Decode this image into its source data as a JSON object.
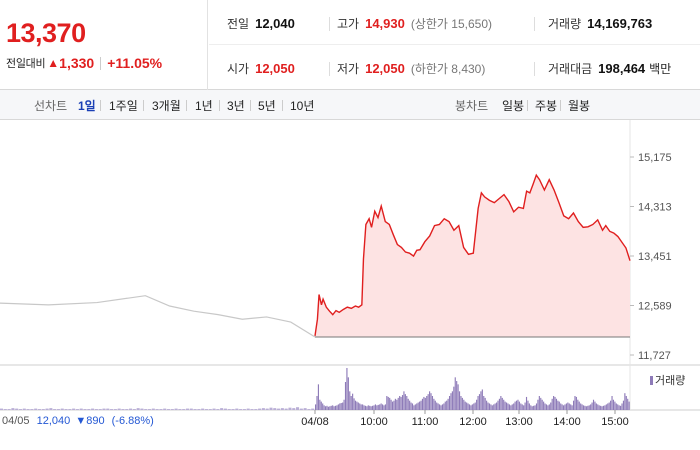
{
  "summary": {
    "price": "13,370",
    "change_label": "전일대비",
    "change_arrow": "▲",
    "change_value": "1,330",
    "change_pct": "+11.05%",
    "prev_close_label": "전일",
    "prev_close": "12,040",
    "high_label": "고가",
    "high": "14,930",
    "upper_limit": "(상한가 15,650)",
    "volume_label": "거래량",
    "volume": "14,169,763",
    "open_label": "시가",
    "open": "12,050",
    "low_label": "저가",
    "low": "12,050",
    "lower_limit": "(하한가 8,430)",
    "trade_value_label": "거래대금",
    "trade_value": "198,464",
    "trade_value_unit": "백만"
  },
  "tabs": {
    "line_chart_label": "선차트",
    "periods": [
      "1일",
      "1주일",
      "3개월",
      "1년",
      "3년",
      "5년",
      "10년"
    ],
    "active_period": "1일",
    "candle_chart_label": "봉차트",
    "candle_periods": [
      "일봉",
      "주봉",
      "월봉"
    ]
  },
  "prev_day": {
    "date": "04/05",
    "price": "12,040",
    "arrow": "▼",
    "change": "890",
    "pct": "(-6.88%)"
  },
  "volume_legend": "거래량",
  "colors": {
    "up": "#e01f1f",
    "down": "#2458d4",
    "prev_line": "#c8c8c8",
    "area_fill": "#fde3e3",
    "volume_bar": "#8e7bb8"
  },
  "chart_data": {
    "type": "line",
    "y_ticks": [
      "15,175",
      "14,313",
      "13,451",
      "12,589",
      "11,727"
    ],
    "ylim": [
      11727,
      15175
    ],
    "x_ticks": [
      "04/08",
      "10:00",
      "11:00",
      "12:00",
      "13:00",
      "14:00",
      "15:00"
    ],
    "base_price": 12040,
    "series": [
      {
        "x": [
          "04/05 09:00",
          "04/05 10:00",
          "04/05 11:00",
          "04/05 12:00",
          "04/05 12:30",
          "04/05 13:00",
          "04/05 13:30",
          "04/05 14:00",
          "04/05 14:30",
          "04/05 15:00",
          "04/05 15:30"
        ],
        "values": [
          12630,
          12600,
          12640,
          12760,
          12580,
          12490,
          12430,
          12350,
          12390,
          12300,
          12040
        ]
      },
      {
        "x": [
          "09:00",
          "09:03",
          "09:05",
          "09:08",
          "09:10",
          "09:14",
          "09:18",
          "09:22",
          "09:26",
          "09:30",
          "09:35",
          "09:40",
          "09:45",
          "09:50",
          "09:54",
          "09:58",
          "10:00",
          "10:03",
          "10:07",
          "10:10",
          "10:14",
          "10:18",
          "10:22",
          "10:27",
          "10:32",
          "10:37",
          "10:42",
          "10:47",
          "10:52",
          "10:57",
          "11:02",
          "11:06",
          "11:10",
          "11:16",
          "11:22",
          "11:28",
          "11:34",
          "11:40",
          "11:46",
          "11:52",
          "11:58",
          "12:04",
          "12:10",
          "12:16",
          "12:22",
          "12:26",
          "12:30",
          "12:36",
          "12:42",
          "12:48",
          "12:54",
          "13:00",
          "13:06",
          "13:12",
          "13:18",
          "13:22",
          "13:26",
          "13:30",
          "13:34",
          "13:38",
          "13:44",
          "13:50",
          "13:56",
          "14:02",
          "14:08",
          "14:14",
          "14:20",
          "14:26",
          "14:32",
          "14:38",
          "14:44",
          "14:50",
          "14:56",
          "15:00",
          "15:05",
          "15:10",
          "15:15",
          "15:20",
          "15:25",
          "15:30"
        ],
        "values": [
          12060,
          12350,
          12780,
          12600,
          12700,
          12560,
          12490,
          12430,
          12500,
          12470,
          12520,
          12560,
          12540,
          12580,
          12560,
          12600,
          13400,
          14000,
          14100,
          13950,
          14230,
          14120,
          14320,
          14050,
          14000,
          13820,
          13650,
          13600,
          13520,
          13500,
          13450,
          13550,
          13560,
          13700,
          13800,
          13980,
          14000,
          14100,
          14050,
          13900,
          13980,
          13600,
          13480,
          13500,
          14280,
          14550,
          14480,
          14420,
          14380,
          14450,
          14520,
          14400,
          14220,
          14300,
          14280,
          14580,
          14550,
          14700,
          14860,
          14780,
          14600,
          14780,
          14600,
          14380,
          14150,
          14100,
          14200,
          14050,
          13950,
          13960,
          14000,
          14080,
          13900,
          13980,
          13880,
          13850,
          13790,
          13690,
          13590,
          13370
        ]
      }
    ],
    "volume": {
      "label": "거래량",
      "profile": [
        {
          "x": "04/05 09:00",
          "values": [
            3,
            2,
            2,
            4,
            3,
            2,
            3,
            2,
            2,
            3,
            2,
            2,
            3,
            4,
            2,
            2,
            3,
            2,
            2,
            3,
            2,
            3,
            2,
            2,
            3,
            2,
            2,
            3,
            3,
            2,
            2,
            3,
            2,
            2,
            3,
            2,
            4,
            3,
            2,
            2,
            3,
            2,
            2,
            3,
            2,
            2,
            3,
            2,
            2,
            3,
            3,
            2,
            2,
            3,
            2,
            2,
            3,
            2,
            4,
            3,
            2,
            2,
            3,
            2,
            2,
            3,
            2,
            2,
            3,
            4,
            3,
            5,
            4,
            3,
            4,
            3,
            5,
            4,
            6,
            3,
            4,
            2,
            3
          ]
        },
        {
          "x": "09:00",
          "values": [
            12,
            30,
            55,
            22,
            18,
            14,
            10,
            8,
            9,
            7,
            8,
            9,
            10,
            8,
            9,
            10,
            12,
            14,
            15,
            16,
            22,
            60,
            90,
            70,
            40,
            30,
            35,
            25,
            20,
            18,
            16,
            14,
            12,
            12,
            10,
            9,
            8,
            10,
            9,
            8,
            9,
            10,
            12,
            10,
            11,
            12,
            14,
            12,
            10,
            12,
            30,
            28,
            26,
            22,
            18,
            20,
            24,
            22,
            26,
            30,
            28,
            32,
            40,
            34,
            30,
            24,
            20,
            16,
            14,
            10,
            12,
            14,
            16,
            18,
            20,
            24,
            28,
            26,
            30,
            34,
            40,
            36,
            30,
            24,
            20,
            16,
            14,
            12,
            10,
            12,
            14,
            18,
            20,
            24,
            30,
            36,
            40,
            50,
            70,
            62,
            55,
            40,
            30,
            26,
            22,
            18,
            16,
            14,
            12,
            10,
            12,
            14,
            16,
            22,
            30,
            34,
            40,
            44,
            30,
            26,
            20,
            16,
            14,
            12,
            10,
            12,
            14,
            16,
            20,
            24,
            30,
            26,
            22,
            18,
            16,
            14,
            12,
            10,
            12,
            14,
            18,
            20,
            22,
            18,
            14,
            12,
            10,
            16,
            28,
            20,
            14,
            10,
            8,
            9,
            10,
            14,
            22,
            30,
            26,
            22,
            18,
            14,
            12,
            10,
            12,
            16,
            24,
            30,
            28,
            24,
            20,
            18,
            14,
            12,
            10,
            12,
            14,
            16,
            14,
            12,
            10,
            20,
            30,
            28,
            22,
            18,
            14,
            12,
            10,
            9,
            8,
            9,
            10,
            12,
            16,
            22,
            18,
            14,
            12,
            10,
            9,
            8,
            9,
            10,
            12,
            14,
            16,
            20,
            30,
            22,
            18,
            14,
            12,
            10,
            9,
            14,
            20,
            36,
            30,
            24,
            18
          ]
        }
      ]
    }
  }
}
